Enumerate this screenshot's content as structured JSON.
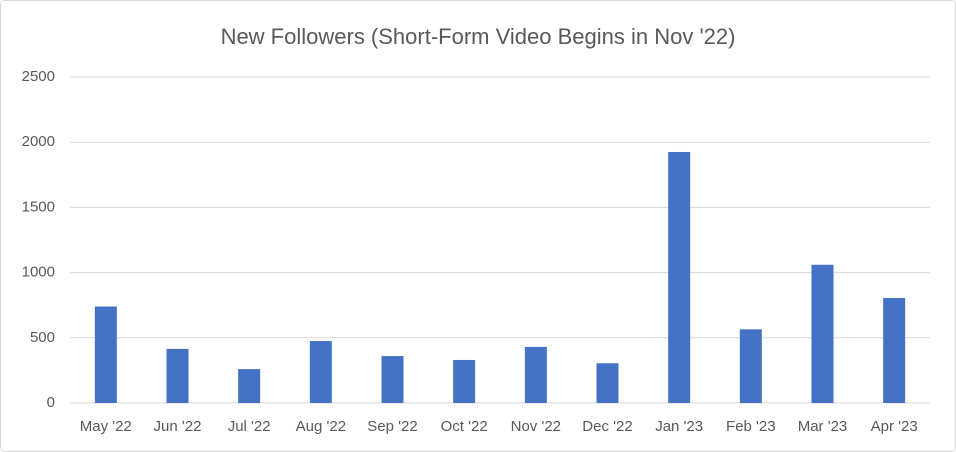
{
  "chart_data": {
    "type": "bar",
    "title": "New Followers (Short-Form Video Begins in Nov '22)",
    "categories": [
      "May '22",
      "Jun '22",
      "Jul '22",
      "Aug '22",
      "Sep '22",
      "Oct '22",
      "Nov '22",
      "Dec '22",
      "Jan '23",
      "Feb '23",
      "Mar '23",
      "Apr '23"
    ],
    "values": [
      740,
      415,
      260,
      475,
      360,
      330,
      430,
      305,
      1925,
      565,
      1060,
      805
    ],
    "color": "#4472c4",
    "ylim": [
      0,
      2500
    ],
    "yticks": [
      0,
      500,
      1000,
      1500,
      2000,
      2500
    ],
    "grid": true
  }
}
